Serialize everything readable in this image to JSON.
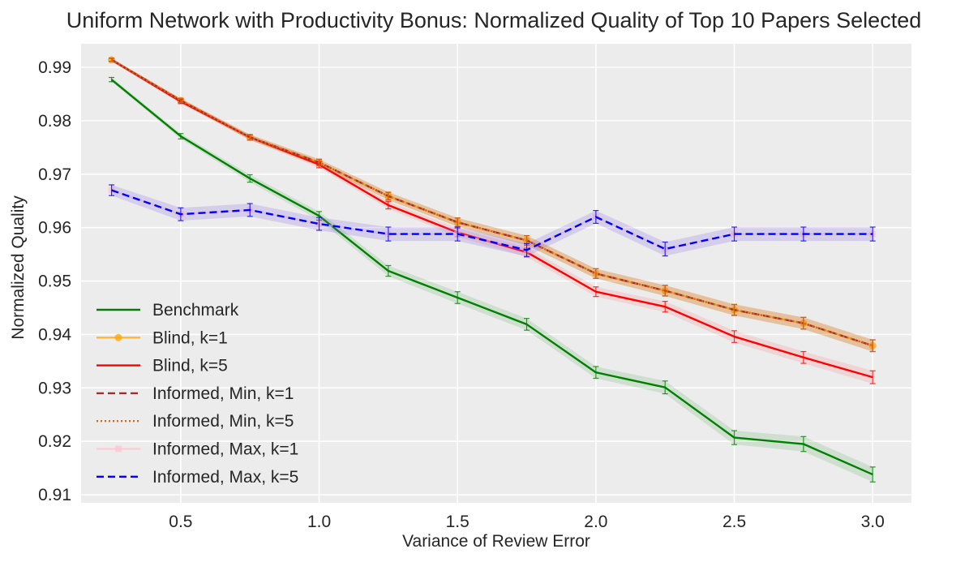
{
  "chart_data": {
    "type": "line",
    "title": "Uniform Network with Productivity Bonus: Normalized Quality of Top 10 Papers Selected",
    "xlabel": "Variance of Review Error",
    "ylabel": "Normalized Quality",
    "xlim": [
      0.14,
      3.14
    ],
    "ylim": [
      0.9085,
      0.9944
    ],
    "xticks": [
      0.5,
      1.0,
      1.5,
      2.0,
      2.5,
      3.0
    ],
    "xtick_labels": [
      "0.5",
      "1.0",
      "1.5",
      "2.0",
      "2.5",
      "3.0"
    ],
    "yticks": [
      0.91,
      0.92,
      0.93,
      0.94,
      0.95,
      0.96,
      0.97,
      0.98,
      0.99
    ],
    "ytick_labels": [
      "0.91",
      "0.92",
      "0.93",
      "0.94",
      "0.95",
      "0.96",
      "0.97",
      "0.98",
      "0.99"
    ],
    "grid": true,
    "legend_position": "lower-left",
    "x": [
      0.25,
      0.5,
      0.75,
      1.0,
      1.25,
      1.5,
      1.75,
      2.0,
      2.25,
      2.5,
      2.75,
      3.0
    ],
    "series": [
      {
        "name": "Benchmark",
        "color": "#008000",
        "dash": "solid",
        "marker": "none",
        "opacity": 1,
        "values": [
          0.9877,
          0.9771,
          0.9692,
          0.9622,
          0.9519,
          0.9469,
          0.9419,
          0.9329,
          0.9301,
          0.9207,
          0.9195,
          0.9138
        ],
        "err": [
          0.0004,
          0.0005,
          0.0007,
          0.0008,
          0.001,
          0.0011,
          0.0011,
          0.0011,
          0.0012,
          0.0013,
          0.0014,
          0.0014
        ],
        "band_opacity": 0.12
      },
      {
        "name": "Blind, k=1",
        "color": "#ffa500",
        "dash": "solid",
        "marker": "circle",
        "opacity": 0.75,
        "values": [
          0.9914,
          0.9838,
          0.9769,
          0.9722,
          0.9659,
          0.961,
          0.9576,
          0.9514,
          0.9482,
          0.9446,
          0.9421,
          0.9379
        ],
        "err": [
          0.0003,
          0.0004,
          0.0005,
          0.0006,
          0.0008,
          0.0008,
          0.0009,
          0.0009,
          0.001,
          0.0011,
          0.0011,
          0.0011
        ],
        "band_opacity": 0.2
      },
      {
        "name": "Blind, k=5",
        "color": "#ff0000",
        "dash": "solid",
        "marker": "none",
        "opacity": 1,
        "values": [
          0.9914,
          0.9836,
          0.9769,
          0.9718,
          0.9642,
          0.9591,
          0.9554,
          0.948,
          0.9452,
          0.9396,
          0.9357,
          0.932
        ],
        "err": [
          0.0003,
          0.0004,
          0.0005,
          0.0006,
          0.0007,
          0.0008,
          0.0009,
          0.0009,
          0.001,
          0.0011,
          0.0011,
          0.0012
        ],
        "band_opacity": 0.1
      },
      {
        "name": "Informed, Min, k=1",
        "color": "#a52a2a",
        "dash": "dashed",
        "marker": "none",
        "opacity": 1,
        "values": [
          0.9914,
          0.9838,
          0.9769,
          0.9722,
          0.9659,
          0.961,
          0.9576,
          0.9514,
          0.9482,
          0.9446,
          0.9421,
          0.9379
        ],
        "err": [
          0.0003,
          0.0004,
          0.0005,
          0.0006,
          0.0007,
          0.0008,
          0.0009,
          0.0009,
          0.001,
          0.001,
          0.0011,
          0.0011
        ],
        "band_opacity": 0.1
      },
      {
        "name": "Informed, Min, k=5",
        "color": "#d2691e",
        "dash": "dotted",
        "marker": "none",
        "opacity": 1,
        "values": [
          0.9914,
          0.9838,
          0.9769,
          0.9722,
          0.9659,
          0.961,
          0.9576,
          0.9514,
          0.9482,
          0.9446,
          0.9421,
          0.9379
        ],
        "err": [
          0.0003,
          0.0004,
          0.0005,
          0.0006,
          0.0007,
          0.0008,
          0.0009,
          0.0009,
          0.001,
          0.001,
          0.0011,
          0.0011
        ],
        "band_opacity": 0.1
      },
      {
        "name": "Informed, Max, k=1",
        "color": "#ffc0cb",
        "dash": "solid",
        "marker": "square",
        "opacity": 0.6,
        "values": [
          0.967,
          0.9625,
          0.9633,
          0.9607,
          0.9588,
          0.9588,
          0.9558,
          0.962,
          0.956,
          0.9588,
          0.9588,
          0.9588
        ],
        "err": [
          0.001,
          0.0012,
          0.0012,
          0.0012,
          0.0013,
          0.0013,
          0.0012,
          0.0012,
          0.0013,
          0.0013,
          0.0013,
          0.0013
        ],
        "band_opacity": 0.12
      },
      {
        "name": "Informed, Max, k=5",
        "color": "#0000ff",
        "dash": "dashed",
        "marker": "none",
        "opacity": 1,
        "values": [
          0.967,
          0.9625,
          0.9633,
          0.9607,
          0.9588,
          0.9588,
          0.9558,
          0.962,
          0.956,
          0.9588,
          0.9588,
          0.9588
        ],
        "err": [
          0.001,
          0.0012,
          0.0012,
          0.0012,
          0.0013,
          0.0013,
          0.0012,
          0.0012,
          0.0013,
          0.0013,
          0.0013,
          0.0013
        ],
        "band_opacity": 0.1
      }
    ]
  }
}
